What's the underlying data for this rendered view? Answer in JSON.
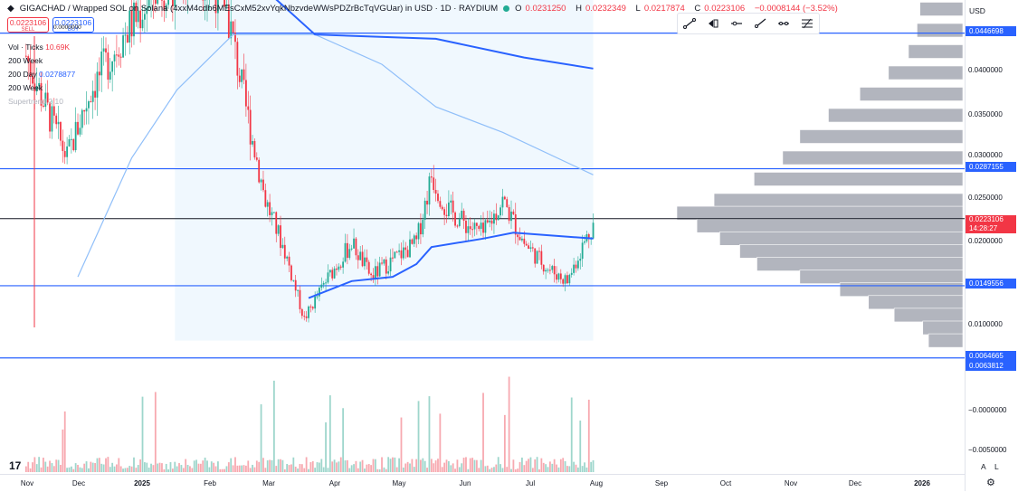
{
  "header": {
    "title": "GIGACHAD / Wrapped SOL on Solana (4xxM4cdb6MEsCxM52xvYqkNbzvdeWWsPDZrBcTqVGUar) in USD · 1D · RAYDIUM",
    "status_color": "#22ab94",
    "open_label": "O",
    "open": "0.0231250",
    "high_label": "H",
    "high": "0.0232349",
    "low_label": "L",
    "low": "0.0217874",
    "close_label": "C",
    "close": "0.0223106",
    "change": "−0.0008144 (−3.52%)"
  },
  "trade": {
    "sell_price": "0.0223106",
    "sell_label": "SELL",
    "buy_price": "0.0223106",
    "buy_label": "BUY",
    "spread": "0.0000000"
  },
  "indicators": [
    {
      "name": "Vol · Ticks",
      "value": "10.69K"
    },
    {
      "name": "200 Week",
      "value": ""
    },
    {
      "name": "200 Day",
      "value": "0.0278877"
    },
    {
      "name": "200 Week",
      "value": ""
    },
    {
      "name": "Supertrend 2 10",
      "value": ""
    }
  ],
  "toolbar_icons": [
    "trend-line-icon",
    "buy-sell-icon",
    "horizontal-ray-icon",
    "ray-icon",
    "extended-line-icon",
    "fib-icon"
  ],
  "price_scale": {
    "currency": "USD",
    "ticks": [
      "0.0400000",
      "0.0350000",
      "0.0300000",
      "0.0250000",
      "0.0200000",
      "0.0100000",
      "−0.0000000",
      "−0.0050000"
    ],
    "labels_blue": [
      "0.0446698",
      "0.0287155",
      "0.0149556",
      "0.0064665",
      "0.0063812"
    ],
    "current_price": "0.0223106",
    "countdown": "14:28:27",
    "auto_label": "A",
    "log_label": "L"
  },
  "time_axis": {
    "labels": [
      "Nov",
      "Dec",
      "2025",
      "Feb",
      "Mar",
      "Apr",
      "May",
      "Jun",
      "Jul",
      "Aug",
      "Sep",
      "Oct",
      "Nov",
      "Dec",
      "2026"
    ]
  },
  "logo_text": "17",
  "chart_data": {
    "type": "candlestick",
    "title": "GIGACHAD / Wrapped SOL on Solana in USD · 1D · RAYDIUM",
    "ylim": [
      -0.006,
      0.052
    ],
    "horizontal_levels": [
      0.0446698,
      0.0287155,
      0.0149556,
      0.0064665,
      0.0063812
    ],
    "current_price_line": 0.0223106,
    "price_path": [
      [
        "2024-11-01",
        0.042
      ],
      [
        "2024-11-10",
        0.036
      ],
      [
        "2024-11-20",
        0.03
      ],
      [
        "2024-12-01",
        0.038
      ],
      [
        "2024-12-15",
        0.044
      ],
      [
        "2025-01-01",
        0.05
      ],
      [
        "2025-01-20",
        0.052
      ],
      [
        "2025-02-01",
        0.049
      ],
      [
        "2025-02-10",
        0.037
      ],
      [
        "2025-02-20",
        0.025
      ],
      [
        "2025-03-01",
        0.019
      ],
      [
        "2025-03-10",
        0.011
      ],
      [
        "2025-03-20",
        0.0155
      ],
      [
        "2025-04-01",
        0.02
      ],
      [
        "2025-04-10",
        0.016
      ],
      [
        "2025-04-20",
        0.018
      ],
      [
        "2025-05-01",
        0.02
      ],
      [
        "2025-05-08",
        0.028
      ],
      [
        "2025-05-15",
        0.024
      ],
      [
        "2025-05-25",
        0.022
      ],
      [
        "2025-06-01",
        0.021
      ],
      [
        "2025-06-10",
        0.025
      ],
      [
        "2025-06-20",
        0.02
      ],
      [
        "2025-07-01",
        0.017
      ],
      [
        "2025-07-10",
        0.0155
      ],
      [
        "2025-07-16",
        0.019
      ],
      [
        "2025-07-22",
        0.0223
      ]
    ],
    "ma_200_day": [
      [
        "2024-11-25",
        0.016
      ],
      [
        "2024-12-20",
        0.03
      ],
      [
        "2025-01-10",
        0.038
      ],
      [
        "2025-02-05",
        0.0445
      ],
      [
        "2025-03-15",
        0.0445
      ],
      [
        "2025-04-15",
        0.041
      ],
      [
        "2025-05-10",
        0.036
      ],
      [
        "2025-06-10",
        0.033
      ],
      [
        "2025-07-22",
        0.028
      ]
    ],
    "ma_200_week": [
      [
        "2025-01-26",
        0.0555
      ],
      [
        "2025-03-15",
        0.0445
      ],
      [
        "2025-05-10",
        0.044
      ],
      [
        "2025-06-20",
        0.0418
      ],
      [
        "2025-07-22",
        0.0405
      ]
    ],
    "supertrend": [
      [
        "2025-03-12",
        0.0135
      ],
      [
        "2025-04-01",
        0.0155
      ],
      [
        "2025-04-20",
        0.016
      ],
      [
        "2025-05-01",
        0.0175
      ],
      [
        "2025-05-08",
        0.0195
      ],
      [
        "2025-06-01",
        0.0205
      ],
      [
        "2025-06-15",
        0.0212
      ],
      [
        "2025-07-22",
        0.0205
      ]
    ],
    "volume_profile": [
      {
        "price": 0.05,
        "volume": 0.13
      },
      {
        "price": 0.0475,
        "volume": 0.15
      },
      {
        "price": 0.045,
        "volume": 0.16
      },
      {
        "price": 0.0425,
        "volume": 0.19
      },
      {
        "price": 0.04,
        "volume": 0.26
      },
      {
        "price": 0.0375,
        "volume": 0.36
      },
      {
        "price": 0.035,
        "volume": 0.47
      },
      {
        "price": 0.0325,
        "volume": 0.57
      },
      {
        "price": 0.03,
        "volume": 0.63
      },
      {
        "price": 0.0275,
        "volume": 0.73
      },
      {
        "price": 0.025,
        "volume": 0.87
      },
      {
        "price": 0.0235,
        "volume": 1.0
      },
      {
        "price": 0.022,
        "volume": 0.93
      },
      {
        "price": 0.0205,
        "volume": 0.85
      },
      {
        "price": 0.019,
        "volume": 0.78
      },
      {
        "price": 0.0175,
        "volume": 0.72
      },
      {
        "price": 0.016,
        "volume": 0.57
      },
      {
        "price": 0.0145,
        "volume": 0.43
      },
      {
        "price": 0.013,
        "volume": 0.33
      },
      {
        "price": 0.0115,
        "volume": 0.24
      },
      {
        "price": 0.01,
        "volume": 0.14
      },
      {
        "price": 0.0085,
        "volume": 0.12
      }
    ],
    "colors": {
      "up": "#22ab94",
      "down": "#f23645",
      "level_line": "#2962ff",
      "ma_dark": "#2962ff",
      "ma_light": "#90bff9",
      "profile": "#b2b5be",
      "highlight": "#e3f2fd"
    }
  }
}
